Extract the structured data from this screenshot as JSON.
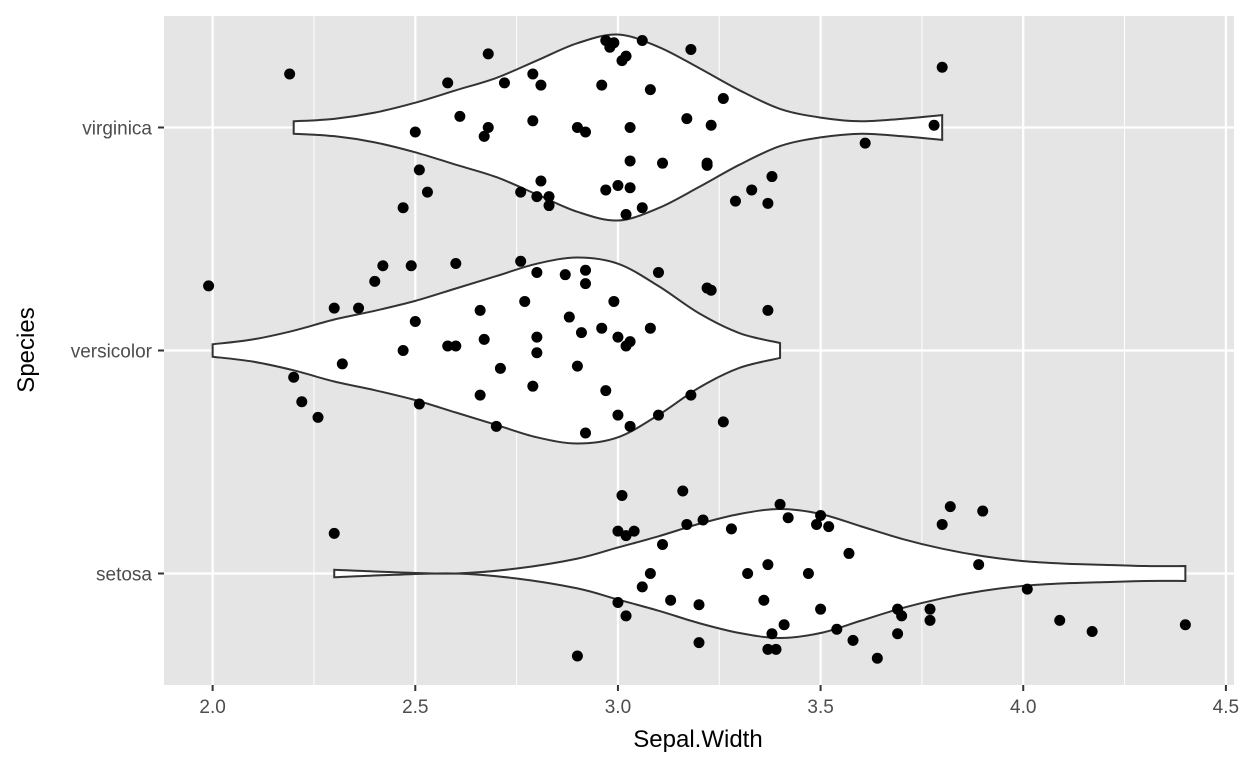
{
  "chart_data": {
    "type": "violin",
    "xlabel": "Sepal.Width",
    "ylabel": "Species",
    "xlim": [
      1.88,
      4.52
    ],
    "x_ticks": [
      2.0,
      2.5,
      3.0,
      3.5,
      4.0,
      4.5
    ],
    "x_tick_labels": [
      "2.0",
      "2.5",
      "3.0",
      "3.5",
      "4.0",
      "4.5"
    ],
    "categories": [
      "setosa",
      "versicolor",
      "virginica"
    ],
    "grid": true,
    "background_color": "#e5e5e5",
    "grid_color": "#ffffff",
    "violin_fill": "#ffffff",
    "violin_stroke": "#333333",
    "point_color": "#000000",
    "series": [
      {
        "name": "setosa",
        "range": [
          2.3,
          4.4
        ],
        "density": [
          [
            2.3,
            0.03
          ],
          [
            2.45,
            0.01
          ],
          [
            2.6,
            0.0
          ],
          [
            2.75,
            0.04
          ],
          [
            2.9,
            0.12
          ],
          [
            3.0,
            0.21
          ],
          [
            3.1,
            0.3
          ],
          [
            3.2,
            0.4
          ],
          [
            3.3,
            0.48
          ],
          [
            3.4,
            0.52
          ],
          [
            3.5,
            0.48
          ],
          [
            3.6,
            0.38
          ],
          [
            3.7,
            0.28
          ],
          [
            3.8,
            0.2
          ],
          [
            3.9,
            0.14
          ],
          [
            4.0,
            0.1
          ],
          [
            4.1,
            0.08
          ],
          [
            4.2,
            0.07
          ],
          [
            4.3,
            0.06
          ],
          [
            4.4,
            0.06
          ]
        ],
        "points": [
          [
            2.3,
            0.18
          ],
          [
            2.9,
            -0.37
          ],
          [
            3.0,
            0.19
          ],
          [
            3.0,
            -0.13
          ],
          [
            3.01,
            0.35
          ],
          [
            3.02,
            -0.19
          ],
          [
            3.02,
            0.17
          ],
          [
            3.04,
            0.19
          ],
          [
            3.06,
            -0.06
          ],
          [
            3.08,
            0.0
          ],
          [
            3.11,
            0.13
          ],
          [
            3.13,
            -0.12
          ],
          [
            3.16,
            0.37
          ],
          [
            3.17,
            0.22
          ],
          [
            3.21,
            0.24
          ],
          [
            3.2,
            -0.31
          ],
          [
            3.2,
            -0.14
          ],
          [
            3.28,
            0.2
          ],
          [
            3.32,
            0.0
          ],
          [
            3.36,
            -0.12
          ],
          [
            3.37,
            0.04
          ],
          [
            3.37,
            -0.34
          ],
          [
            3.38,
            -0.27
          ],
          [
            3.39,
            -0.34
          ],
          [
            3.4,
            0.31
          ],
          [
            3.42,
            0.25
          ],
          [
            3.41,
            -0.23
          ],
          [
            3.47,
            0.0
          ],
          [
            3.49,
            0.22
          ],
          [
            3.5,
            0.26
          ],
          [
            3.5,
            -0.16
          ],
          [
            3.52,
            0.21
          ],
          [
            3.54,
            -0.25
          ],
          [
            3.57,
            0.09
          ],
          [
            3.58,
            -0.3
          ],
          [
            3.64,
            -0.38
          ],
          [
            3.69,
            -0.16
          ],
          [
            3.7,
            -0.19
          ],
          [
            3.69,
            -0.27
          ],
          [
            3.77,
            -0.16
          ],
          [
            3.77,
            -0.21
          ],
          [
            3.8,
            0.22
          ],
          [
            3.82,
            0.3
          ],
          [
            3.89,
            0.04
          ],
          [
            3.9,
            0.28
          ],
          [
            4.01,
            -0.07
          ],
          [
            4.09,
            -0.21
          ],
          [
            4.17,
            -0.26
          ],
          [
            4.4,
            -0.23
          ]
        ]
      },
      {
        "name": "versicolor",
        "range": [
          2.0,
          3.4
        ],
        "density": [
          [
            2.0,
            0.05
          ],
          [
            2.1,
            0.09
          ],
          [
            2.2,
            0.16
          ],
          [
            2.3,
            0.25
          ],
          [
            2.4,
            0.32
          ],
          [
            2.5,
            0.4
          ],
          [
            2.6,
            0.5
          ],
          [
            2.7,
            0.6
          ],
          [
            2.8,
            0.7
          ],
          [
            2.9,
            0.75
          ],
          [
            3.0,
            0.7
          ],
          [
            3.1,
            0.52
          ],
          [
            3.2,
            0.3
          ],
          [
            3.3,
            0.14
          ],
          [
            3.4,
            0.06
          ]
        ],
        "points": [
          [
            1.99,
            0.29
          ],
          [
            2.2,
            -0.12
          ],
          [
            2.22,
            -0.23
          ],
          [
            2.26,
            -0.3
          ],
          [
            2.3,
            0.19
          ],
          [
            2.32,
            -0.06
          ],
          [
            2.36,
            0.19
          ],
          [
            2.4,
            0.31
          ],
          [
            2.42,
            0.38
          ],
          [
            2.47,
            0.0
          ],
          [
            2.49,
            0.38
          ],
          [
            2.5,
            0.13
          ],
          [
            2.51,
            -0.24
          ],
          [
            2.58,
            0.02
          ],
          [
            2.6,
            0.02
          ],
          [
            2.6,
            0.39
          ],
          [
            2.66,
            0.18
          ],
          [
            2.66,
            -0.2
          ],
          [
            2.67,
            0.05
          ],
          [
            2.7,
            -0.34
          ],
          [
            2.71,
            -0.08
          ],
          [
            2.76,
            0.4
          ],
          [
            2.77,
            0.22
          ],
          [
            2.79,
            -0.16
          ],
          [
            2.8,
            0.35
          ],
          [
            2.8,
            -0.01
          ],
          [
            2.8,
            0.06
          ],
          [
            2.87,
            0.34
          ],
          [
            2.9,
            -0.07
          ],
          [
            2.88,
            0.15
          ],
          [
            2.91,
            0.08
          ],
          [
            2.92,
            0.3
          ],
          [
            2.92,
            0.36
          ],
          [
            2.92,
            -0.37
          ],
          [
            2.96,
            0.1
          ],
          [
            2.97,
            -0.18
          ],
          [
            2.99,
            0.22
          ],
          [
            3.0,
            0.06
          ],
          [
            3.0,
            -0.29
          ],
          [
            3.02,
            0.02
          ],
          [
            3.03,
            0.04
          ],
          [
            3.03,
            -0.34
          ],
          [
            3.08,
            0.1
          ],
          [
            3.1,
            0.35
          ],
          [
            3.1,
            -0.29
          ],
          [
            3.18,
            -0.2
          ],
          [
            3.22,
            0.28
          ],
          [
            3.23,
            0.27
          ],
          [
            3.26,
            -0.32
          ],
          [
            3.37,
            0.18
          ]
        ]
      },
      {
        "name": "virginica",
        "range": [
          2.2,
          3.8
        ],
        "density": [
          [
            2.2,
            0.05
          ],
          [
            2.3,
            0.07
          ],
          [
            2.4,
            0.12
          ],
          [
            2.5,
            0.2
          ],
          [
            2.6,
            0.3
          ],
          [
            2.7,
            0.4
          ],
          [
            2.8,
            0.54
          ],
          [
            2.9,
            0.68
          ],
          [
            3.0,
            0.75
          ],
          [
            3.1,
            0.65
          ],
          [
            3.2,
            0.48
          ],
          [
            3.3,
            0.3
          ],
          [
            3.4,
            0.15
          ],
          [
            3.5,
            0.08
          ],
          [
            3.6,
            0.05
          ],
          [
            3.7,
            0.07
          ],
          [
            3.8,
            0.1
          ]
        ],
        "points": [
          [
            2.19,
            0.24
          ],
          [
            2.47,
            -0.36
          ],
          [
            2.5,
            -0.02
          ],
          [
            2.51,
            -0.19
          ],
          [
            2.53,
            -0.29
          ],
          [
            2.58,
            0.2
          ],
          [
            2.61,
            0.05
          ],
          [
            2.67,
            -0.04
          ],
          [
            2.68,
            0.33
          ],
          [
            2.68,
            0.0
          ],
          [
            2.72,
            0.2
          ],
          [
            2.76,
            -0.29
          ],
          [
            2.79,
            0.24
          ],
          [
            2.79,
            0.03
          ],
          [
            2.8,
            -0.31
          ],
          [
            2.81,
            0.19
          ],
          [
            2.81,
            -0.24
          ],
          [
            2.83,
            -0.35
          ],
          [
            2.83,
            -0.31
          ],
          [
            2.9,
            0.0
          ],
          [
            2.92,
            -0.02
          ],
          [
            2.96,
            0.19
          ],
          [
            2.97,
            0.39
          ],
          [
            2.97,
            -0.28
          ],
          [
            2.98,
            0.36
          ],
          [
            2.99,
            0.38
          ],
          [
            3.0,
            -0.26
          ],
          [
            3.01,
            0.3
          ],
          [
            3.02,
            0.32
          ],
          [
            3.02,
            -0.39
          ],
          [
            3.03,
            -0.27
          ],
          [
            3.03,
            0.0
          ],
          [
            3.03,
            -0.15
          ],
          [
            3.06,
            0.39
          ],
          [
            3.06,
            -0.36
          ],
          [
            3.08,
            0.17
          ],
          [
            3.11,
            -0.16
          ],
          [
            3.17,
            0.04
          ],
          [
            3.18,
            0.35
          ],
          [
            3.22,
            -0.17
          ],
          [
            3.22,
            -0.16
          ],
          [
            3.23,
            0.01
          ],
          [
            3.26,
            0.13
          ],
          [
            3.29,
            -0.33
          ],
          [
            3.33,
            -0.28
          ],
          [
            3.37,
            -0.34
          ],
          [
            3.38,
            -0.22
          ],
          [
            3.61,
            -0.07
          ],
          [
            3.78,
            0.01
          ],
          [
            3.8,
            0.27
          ]
        ]
      }
    ]
  }
}
